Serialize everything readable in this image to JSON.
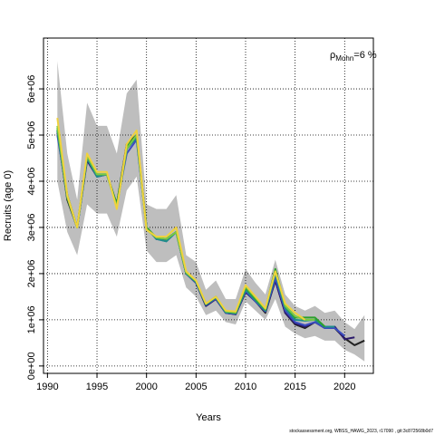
{
  "chart_data": {
    "type": "line",
    "xlabel": "Years",
    "ylabel": "Recruits (age 0)",
    "annotation": {
      "symbol": "ρ",
      "subscript": "Mohn",
      "text": "=6 %"
    },
    "footer": "stockassessment.org, WBSS_HAWG_2023, r17090 , git:3c872568b0d7",
    "x": [
      1991,
      1992,
      1993,
      1994,
      1995,
      1996,
      1997,
      1998,
      1999,
      2000,
      2001,
      2002,
      2003,
      2004,
      2005,
      2006,
      2007,
      2008,
      2009,
      2010,
      2011,
      2012,
      2013,
      2014,
      2015,
      2016,
      2017,
      2018,
      2019,
      2020,
      2021,
      2022
    ],
    "band": {
      "color": "#bebebe",
      "upper": [
        6600000,
        4600000,
        3600000,
        5700000,
        5200000,
        5200000,
        4600000,
        5900000,
        6200000,
        3500000,
        3400000,
        3400000,
        3700000,
        2400000,
        2250000,
        1650000,
        1850000,
        1450000,
        1450000,
        2100000,
        1800000,
        1550000,
        2300000,
        1550000,
        1300000,
        1200000,
        1300000,
        1150000,
        1200000,
        950000,
        800000,
        1100000
      ],
      "lower": [
        4000000,
        2900000,
        2400000,
        3500000,
        3300000,
        3300000,
        2800000,
        3800000,
        4100000,
        2500000,
        2250000,
        2250000,
        2400000,
        1700000,
        1500000,
        1100000,
        1200000,
        950000,
        900000,
        1400000,
        1200000,
        1000000,
        1450000,
        850000,
        700000,
        600000,
        650000,
        550000,
        550000,
        350000,
        250000,
        100000
      ]
    },
    "series": [
      {
        "color": "#222222",
        "values": [
          5100000,
          3600000,
          3000000,
          4500000,
          4100000,
          4150000,
          3500000,
          4800000,
          5000000,
          3000000,
          2750000,
          2750000,
          2900000,
          2000000,
          1800000,
          1300000,
          1450000,
          1150000,
          1120000,
          1600000,
          1400000,
          1150000,
          1850000,
          1150000,
          900000,
          820000,
          950000,
          820000,
          820000,
          600000,
          450000,
          550000
        ]
      },
      {
        "color": "#2b1a6b",
        "values": [
          5050000,
          3650000,
          3000000,
          4450000,
          4100000,
          4150000,
          3500000,
          4700000,
          4950000,
          3000000,
          2750000,
          2750000,
          2900000,
          2000000,
          1800000,
          1300000,
          1450000,
          1150000,
          1120000,
          1600000,
          1400000,
          1180000,
          1850000,
          1150000,
          920000,
          850000,
          950000,
          850000,
          850000,
          580000,
          620000,
          null
        ]
      },
      {
        "color": "#3b4cc0",
        "values": [
          5000000,
          3700000,
          3000000,
          4500000,
          4100000,
          4150000,
          3500000,
          4600000,
          4900000,
          3000000,
          2750000,
          2700000,
          2900000,
          2000000,
          1800000,
          1320000,
          1460000,
          1150000,
          1130000,
          1620000,
          1400000,
          1180000,
          1900000,
          1200000,
          950000,
          880000,
          950000,
          820000,
          820000,
          650000,
          null,
          null
        ]
      },
      {
        "color": "#1f8f8a",
        "values": [
          5100000,
          3650000,
          3000000,
          4500000,
          4100000,
          4150000,
          3450000,
          4700000,
          4950000,
          3000000,
          2750000,
          2700000,
          2900000,
          2000000,
          1820000,
          1330000,
          1480000,
          1160000,
          1140000,
          1650000,
          1420000,
          1200000,
          2000000,
          1250000,
          1000000,
          980000,
          1000000,
          850000,
          850000,
          null,
          null,
          null
        ]
      },
      {
        "color": "#2ca02c",
        "values": [
          5150000,
          3700000,
          3000000,
          4550000,
          4150000,
          4150000,
          3500000,
          4750000,
          5000000,
          3000000,
          2780000,
          2750000,
          2900000,
          2020000,
          1830000,
          1340000,
          1500000,
          1180000,
          1150000,
          1700000,
          1450000,
          1220000,
          2100000,
          1300000,
          1050000,
          1050000,
          1050000,
          850000,
          null,
          null,
          null,
          null
        ]
      },
      {
        "color": "#7ac943",
        "values": [
          5200000,
          3650000,
          3000000,
          4550000,
          4150000,
          4150000,
          3450000,
          4700000,
          5000000,
          2950000,
          2780000,
          2750000,
          2900000,
          2020000,
          1840000,
          1350000,
          1500000,
          1180000,
          1160000,
          1720000,
          1480000,
          1230000,
          2050000,
          1300000,
          1080000,
          1000000,
          1000000,
          null,
          null,
          null,
          null,
          null
        ]
      },
      {
        "color": "#f0d23c",
        "values": [
          5370000,
          3700000,
          3000000,
          4600000,
          4200000,
          4200000,
          3400000,
          4800000,
          5100000,
          2950000,
          2800000,
          2800000,
          3000000,
          2050000,
          1850000,
          1350000,
          1500000,
          1200000,
          1180000,
          1750000,
          1500000,
          1250000,
          2050000,
          1350000,
          1150000,
          1000000,
          null,
          null,
          null,
          null,
          null,
          null
        ]
      }
    ],
    "xlim": [
      1989.6,
      2022.9
    ],
    "xticks": [
      1990,
      1995,
      2000,
      2005,
      2010,
      2015,
      2020
    ],
    "ylim": [
      -160000,
      7100000
    ],
    "yticks": [
      {
        "value": 0,
        "label": "0e+00"
      },
      {
        "value": 1000000,
        "label": "1e+06"
      },
      {
        "value": 2000000,
        "label": "2e+06"
      },
      {
        "value": 3000000,
        "label": "3e+06"
      },
      {
        "value": 4000000,
        "label": "4e+06"
      },
      {
        "value": 5000000,
        "label": "5e+06"
      },
      {
        "value": 6000000,
        "label": "6e+06"
      }
    ],
    "grid": true
  }
}
